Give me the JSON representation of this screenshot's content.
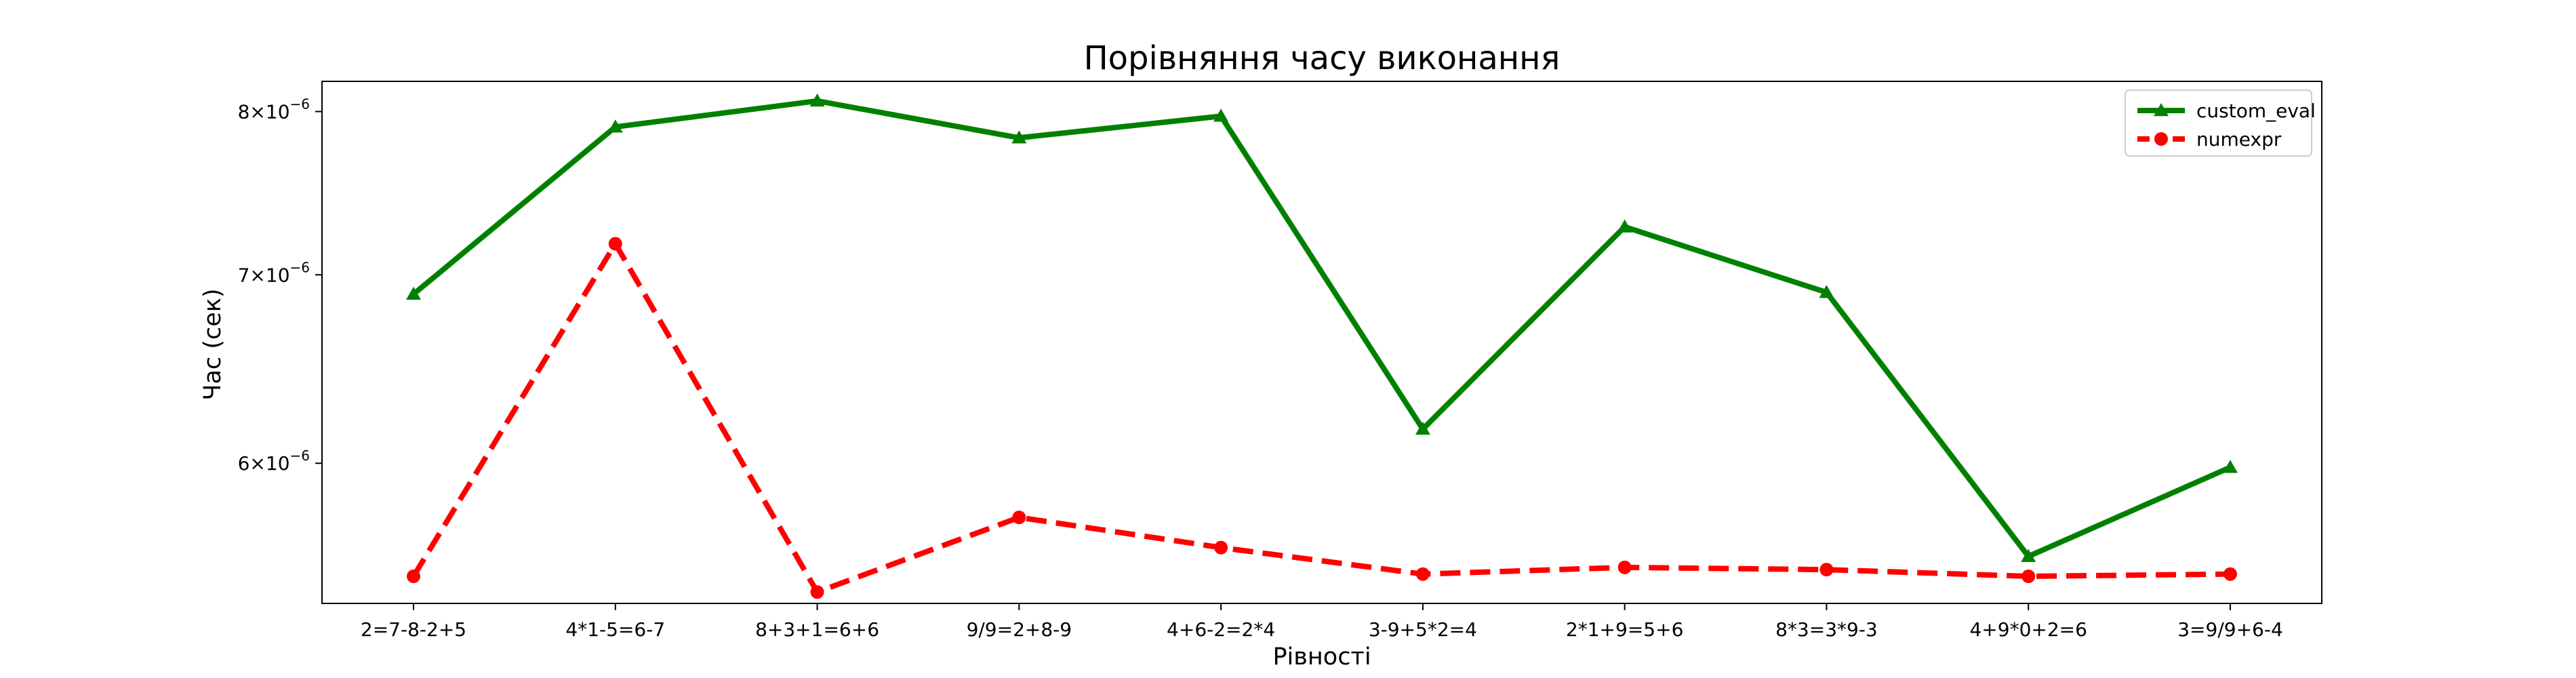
{
  "chart_data": {
    "type": "line",
    "title": "Порівняння часу виконання",
    "xlabel": "Рівності",
    "ylabel": "Час (сек)",
    "y_scale": "log",
    "ylim": [
      5.35e-06,
      8.2e-06
    ],
    "y_ticks": [
      {
        "value": 6e-06,
        "mantissa": "6",
        "base": "10",
        "exp": "−6"
      },
      {
        "value": 7e-06,
        "mantissa": "7",
        "base": "10",
        "exp": "−6"
      },
      {
        "value": 8e-06,
        "mantissa": "8",
        "base": "10",
        "exp": "−6"
      }
    ],
    "categories": [
      "2=7-8-2+5",
      "4*1-5=6-7",
      "8+3+1=6+6",
      "9/9=2+8-9",
      "4+6-2=2*4",
      "3-9+5*2=4",
      "2*1+9=5+6",
      "8*3=3*9-3",
      "4+9*0+2=6",
      "3=9/9+6-4"
    ],
    "series": [
      {
        "name": "custom_eval",
        "color": "#008000",
        "marker": "triangle",
        "linestyle": "solid",
        "values": [
          6.89e-06,
          7.9e-06,
          8.07e-06,
          7.83e-06,
          7.97e-06,
          6.17e-06,
          7.28e-06,
          6.9e-06,
          5.56e-06,
          5.98e-06
        ]
      },
      {
        "name": "numexpr",
        "color": "#ff0000",
        "marker": "circle",
        "linestyle": "dashed",
        "values": [
          5.47e-06,
          7.18e-06,
          5.4e-06,
          5.74e-06,
          5.6e-06,
          5.48e-06,
          5.51e-06,
          5.5e-06,
          5.47e-06,
          5.48e-06
        ]
      }
    ],
    "grid": false,
    "legend_position": "top-right"
  }
}
